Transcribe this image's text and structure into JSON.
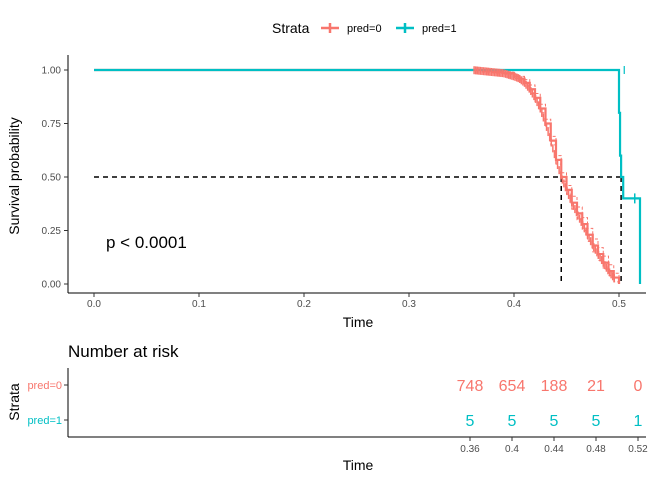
{
  "colors": {
    "pred0": "#F8766D",
    "pred1": "#00BFC4"
  },
  "legend": {
    "title": "Strata",
    "items": [
      {
        "label": "pred=0",
        "color": "#F8766D"
      },
      {
        "label": "pred=1",
        "color": "#00BFC4"
      }
    ]
  },
  "chart_data": [
    {
      "type": "line",
      "xlabel": "Time",
      "ylabel": "Survival probability",
      "xlim": [
        0,
        0.52
      ],
      "ylim": [
        0,
        1
      ],
      "x_ticks": [
        "0.0",
        "0.1",
        "0.2",
        "0.3",
        "0.4",
        "0.5"
      ],
      "y_ticks": [
        "0.00",
        "0.25",
        "0.50",
        "0.75",
        "1.00"
      ],
      "grid": false,
      "legend_position": "top",
      "annotation": "p < 0.0001",
      "median_line": {
        "y": 0.5,
        "x_values": [
          0.445,
          0.502
        ]
      },
      "series": [
        {
          "name": "pred=0",
          "color": "#F8766D",
          "x": [
            0,
            0.36,
            0.37,
            0.38,
            0.39,
            0.4,
            0.405,
            0.41,
            0.415,
            0.42,
            0.425,
            0.43,
            0.435,
            0.44,
            0.445,
            0.45,
            0.455,
            0.46,
            0.465,
            0.47,
            0.475,
            0.48,
            0.485,
            0.49,
            0.495,
            0.5
          ],
          "y": [
            1.0,
            1.0,
            0.995,
            0.99,
            0.985,
            0.97,
            0.96,
            0.94,
            0.91,
            0.87,
            0.82,
            0.75,
            0.67,
            0.58,
            0.5,
            0.44,
            0.38,
            0.33,
            0.28,
            0.23,
            0.18,
            0.14,
            0.1,
            0.06,
            0.03,
            0.0
          ],
          "upper": [
            1.0,
            1.0,
            1.0,
            0.995,
            0.99,
            0.98,
            0.97,
            0.955,
            0.93,
            0.89,
            0.84,
            0.77,
            0.69,
            0.6,
            0.52,
            0.46,
            0.41,
            0.36,
            0.31,
            0.26,
            0.21,
            0.17,
            0.13,
            0.09,
            0.05,
            0.02
          ],
          "lower": [
            1.0,
            1.0,
            0.99,
            0.985,
            0.98,
            0.96,
            0.95,
            0.925,
            0.89,
            0.85,
            0.8,
            0.73,
            0.65,
            0.56,
            0.48,
            0.42,
            0.35,
            0.3,
            0.25,
            0.2,
            0.15,
            0.11,
            0.07,
            0.04,
            0.01,
            0.0
          ]
        },
        {
          "name": "pred=1",
          "color": "#00BFC4",
          "x": [
            0,
            0.5,
            0.5,
            0.501,
            0.501,
            0.502,
            0.502,
            0.504,
            0.504,
            0.52
          ],
          "y": [
            1.0,
            1.0,
            0.8,
            0.8,
            0.6,
            0.6,
            0.5,
            0.5,
            0.4,
            0.4
          ],
          "drop": {
            "x": 0.52,
            "to": 0.0
          }
        }
      ]
    },
    {
      "type": "table",
      "title": "Number at risk",
      "xlabel": "Time",
      "ylabel": "Strata",
      "x_ticks": [
        "0.36",
        "0.4",
        "0.44",
        "0.48",
        "0.52"
      ],
      "x_values": [
        0.36,
        0.4,
        0.44,
        0.48,
        0.52
      ],
      "rows": [
        {
          "label": "pred=0",
          "color": "#F8766D",
          "values": [
            "748",
            "654",
            "188",
            "21",
            "0"
          ]
        },
        {
          "label": "pred=1",
          "color": "#00BFC4",
          "values": [
            "5",
            "5",
            "5",
            "5",
            "1"
          ]
        }
      ]
    }
  ]
}
